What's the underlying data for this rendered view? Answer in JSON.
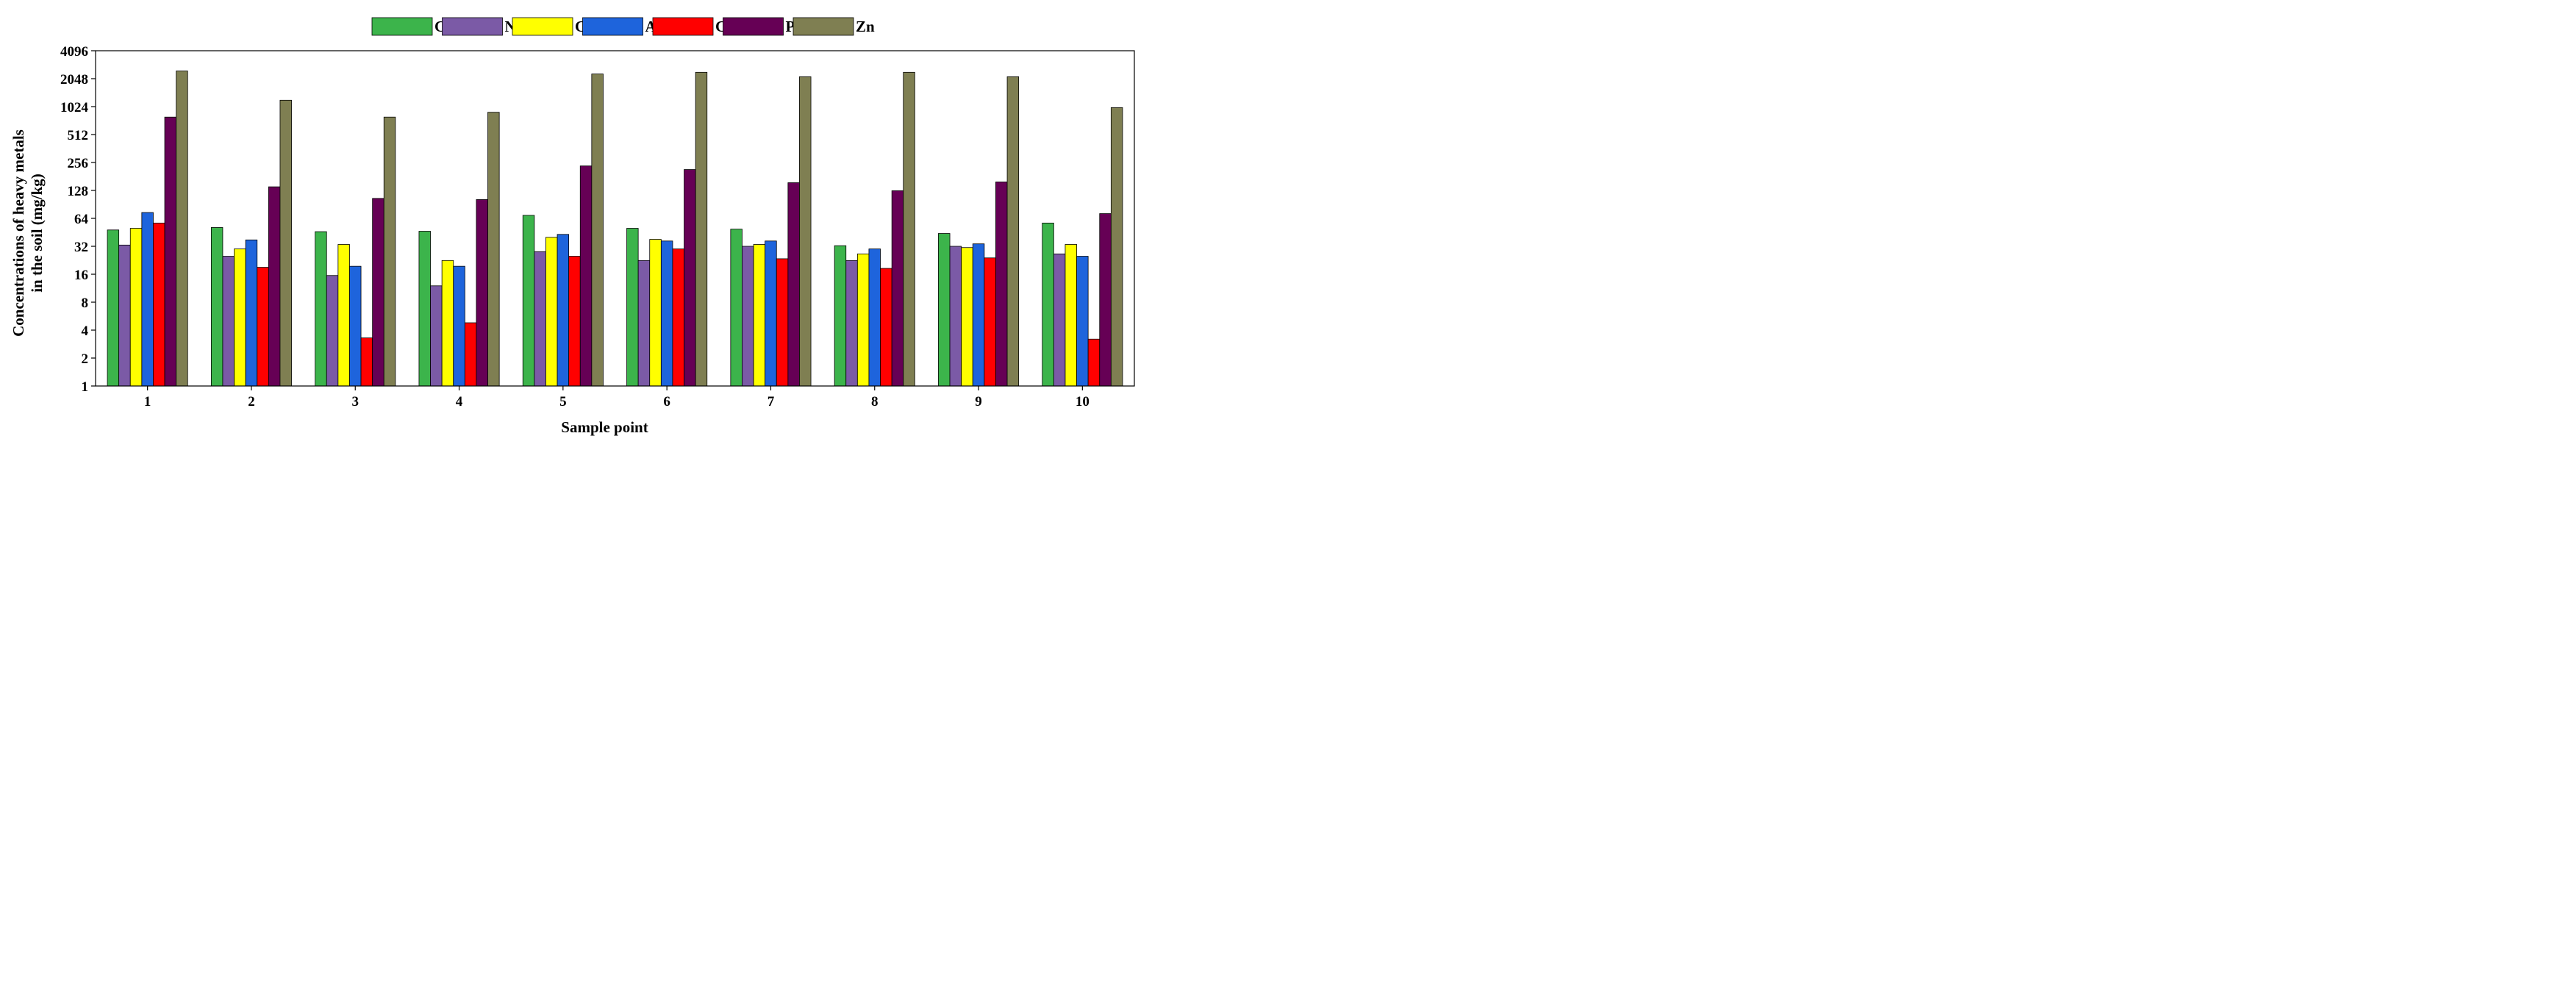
{
  "chart_data": {
    "type": "bar",
    "title": "",
    "xlabel": "Sample point",
    "ylabel_lines": [
      "Concentrations of heavy metals",
      "in the soil (mg/kg)"
    ],
    "y_scale": "log2",
    "ylim": [
      1,
      4096
    ],
    "yticks": [
      1,
      2,
      4,
      8,
      16,
      32,
      64,
      128,
      256,
      512,
      1024,
      2048,
      4096
    ],
    "ytick_labels": [
      "1",
      "2",
      "4",
      "8",
      "16",
      "32",
      "64",
      "128",
      "256",
      "512",
      "1024",
      "2048",
      "4096"
    ],
    "legend_position": "top-center",
    "categories": [
      "1",
      "2",
      "3",
      "4",
      "5",
      "6",
      "7",
      "8",
      "9",
      "10"
    ],
    "series": [
      {
        "name": "Cr",
        "color": "#3cb44b",
        "values": [
          48,
          51,
          46,
          46.5,
          69,
          50,
          49,
          32.5,
          44,
          57
        ]
      },
      {
        "name": "Ni",
        "color": "#7b5aa6",
        "values": [
          33,
          25,
          15.5,
          12,
          28,
          22.5,
          32,
          22.5,
          32,
          26.5
        ]
      },
      {
        "name": "Cu",
        "color": "#ffff00",
        "values": [
          50,
          30,
          33.5,
          22.5,
          40,
          38,
          33.5,
          26.5,
          31,
          33.5
        ]
      },
      {
        "name": "As",
        "color": "#1e64dc",
        "values": [
          74,
          37.5,
          19.5,
          19.5,
          43,
          36.5,
          36.5,
          30,
          34,
          25
        ]
      },
      {
        "name": "Cd",
        "color": "#ff0000",
        "values": [
          57,
          19,
          3.3,
          4.8,
          25,
          30,
          23.5,
          18.5,
          24,
          3.2
        ]
      },
      {
        "name": "Pb",
        "color": "#660055",
        "values": [
          790,
          140,
          105,
          102,
          235,
          215,
          155,
          127,
          158,
          72
        ]
      },
      {
        "name": "Zn",
        "color": "#7f7f52",
        "values": [
          2480,
          1200,
          790,
          890,
          2300,
          2400,
          2150,
          2400,
          2150,
          1000
        ]
      }
    ]
  }
}
